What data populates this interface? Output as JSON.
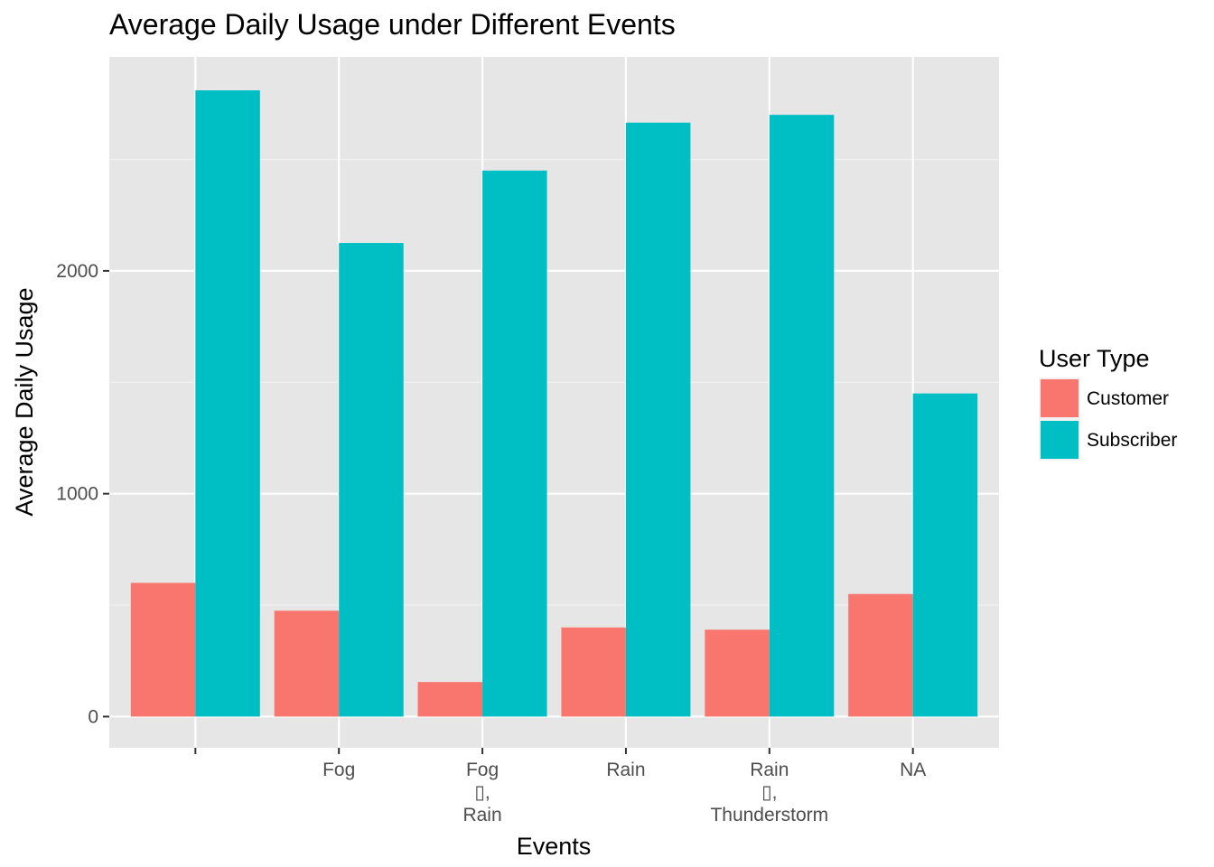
{
  "chart_data": {
    "type": "bar",
    "title": "Average Daily Usage under Different Events",
    "xlabel": "Events",
    "ylabel": "Average Daily Usage",
    "categories": [
      [
        ""
      ],
      [
        "Fog"
      ],
      [
        "Fog",
        "▯,",
        "Rain"
      ],
      [
        "Rain"
      ],
      [
        "Rain",
        "▯,",
        "Thunderstorm"
      ],
      [
        "NA"
      ]
    ],
    "series": [
      {
        "name": "Customer",
        "color": "#F8766D",
        "values": [
          600,
          475,
          155,
          400,
          390,
          550
        ]
      },
      {
        "name": "Subscriber",
        "color": "#00BFC4",
        "values": [
          2810,
          2125,
          2450,
          2665,
          2700,
          1450
        ]
      }
    ],
    "ylim": [
      -140,
      2960
    ],
    "yticks": [
      0,
      1000,
      2000
    ],
    "ytick_labels": [
      "0",
      "1000",
      "2000"
    ],
    "legend": {
      "title": "User Type",
      "position": "right"
    },
    "grid": true
  }
}
